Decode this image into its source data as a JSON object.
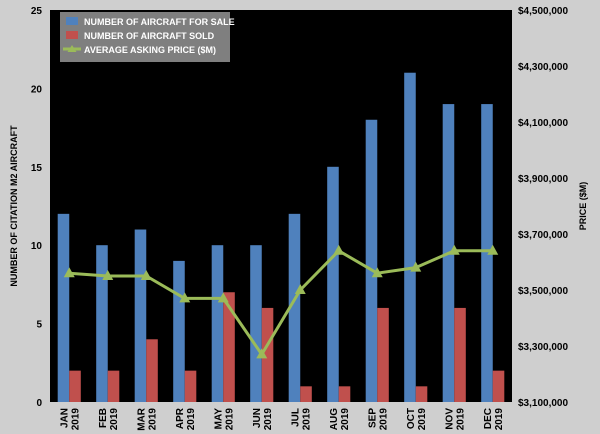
{
  "chart_data": {
    "type": "bar",
    "title": "",
    "categories": [
      "JAN 2019",
      "FEB 2019",
      "MAR 2019",
      "APR 2019",
      "MAY 2019",
      "JUN 2019",
      "JUL 2019",
      "AUG 2019",
      "SEP 2019",
      "OCT 2019",
      "NOV 2019",
      "DEC 2019"
    ],
    "x_tick_labels": [
      [
        "JAN",
        "2019"
      ],
      [
        "FEB",
        "2019"
      ],
      [
        "MAR",
        "2019"
      ],
      [
        "APR",
        "2019"
      ],
      [
        "MAY",
        "2019"
      ],
      [
        "JUN",
        "2019"
      ],
      [
        "JUL",
        "2019"
      ],
      [
        "AUG",
        "2019"
      ],
      [
        "SEP",
        "2019"
      ],
      [
        "OCT",
        "2019"
      ],
      [
        "NOV",
        "2019"
      ],
      [
        "DEC",
        "2019"
      ]
    ],
    "series": [
      {
        "name": "NUMBER OF AIRCRAFT FOR SALE",
        "type": "bar",
        "axis": "left",
        "color": "#4f81bd",
        "values": [
          12,
          10,
          11,
          9,
          10,
          10,
          12,
          15,
          18,
          21,
          19,
          19
        ]
      },
      {
        "name": "NUMBER OF AIRCRAFT SOLD",
        "type": "bar",
        "axis": "left",
        "color": "#c0504d",
        "values": [
          2,
          2,
          4,
          2,
          7,
          6,
          1,
          1,
          6,
          1,
          6,
          2
        ]
      },
      {
        "name": "AVERAGE ASKING PRICE ($M)",
        "type": "line",
        "axis": "right",
        "color": "#9bbb59",
        "values": [
          3560000,
          3550000,
          3550000,
          3470000,
          3470000,
          3270000,
          3500000,
          3640000,
          3560000,
          3580000,
          3640000,
          3640000
        ]
      }
    ],
    "ylabel": "NUMBER OF CITATION M2 AIRCRAFT",
    "ylim": [
      0,
      25
    ],
    "yticks": [
      0,
      5,
      10,
      15,
      20,
      25
    ],
    "y2label": "PRICE ($M)",
    "y2lim": [
      3100000,
      4500000
    ],
    "y2ticks": [
      3100000,
      3300000,
      3500000,
      3700000,
      3900000,
      4100000,
      4300000,
      4500000
    ],
    "y2tick_labels": [
      "$3,100,000",
      "$3,300,000",
      "$3,500,000",
      "$3,700,000",
      "$3,900,000",
      "$4,100,000",
      "$4,300,000",
      "$4,500,000"
    ],
    "grid": false,
    "legend_position": "top-left",
    "colors": {
      "plot_background": "#000000",
      "page_background": "#cfcfcf",
      "legend_background": "#7f7f7f"
    }
  }
}
